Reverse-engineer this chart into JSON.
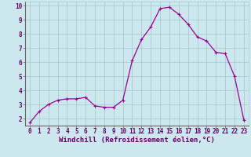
{
  "hours": [
    0,
    1,
    2,
    3,
    4,
    5,
    6,
    7,
    8,
    9,
    10,
    11,
    12,
    13,
    14,
    15,
    16,
    17,
    18,
    19,
    20,
    21,
    22,
    23
  ],
  "values": [
    1.7,
    2.5,
    3.0,
    3.3,
    3.4,
    3.4,
    3.5,
    2.9,
    2.8,
    2.8,
    3.3,
    6.1,
    7.6,
    8.5,
    9.8,
    9.9,
    9.4,
    8.7,
    7.8,
    7.5,
    6.7,
    6.6,
    5.0,
    1.9
  ],
  "line_color": "#990099",
  "marker": "+",
  "marker_size": 3,
  "marker_linewidth": 0.8,
  "bg_color": "#cce8ee",
  "grid_color": "#aacccc",
  "xlabel": "Windchill (Refroidissement éolien,°C)",
  "xlabel_color": "#660066",
  "xlabel_fontsize": 6.5,
  "tick_color": "#660066",
  "tick_fontsize": 5.5,
  "ylim": [
    1.5,
    10.3
  ],
  "yticks": [
    2,
    3,
    4,
    5,
    6,
    7,
    8,
    9,
    10
  ],
  "xlim": [
    -0.5,
    23.5
  ],
  "spine_color": "#888888",
  "axis_bg": "#d6ecf0"
}
